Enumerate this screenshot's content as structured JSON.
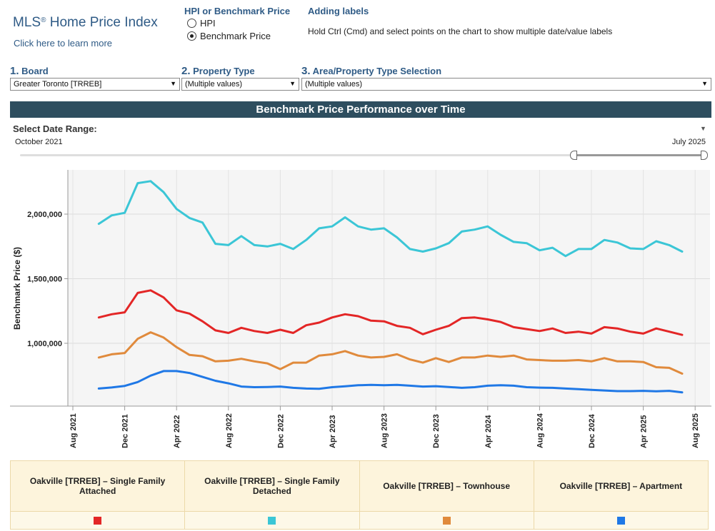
{
  "header": {
    "title": "MLS",
    "title_mark": "®",
    "title_rest": " Home Price Index",
    "learn_more": "Click here to learn more"
  },
  "hpi_toggle": {
    "title": "HPI or Benchmark Price",
    "options": [
      {
        "label": "HPI",
        "selected": false
      },
      {
        "label": "Benchmark Price",
        "selected": true
      }
    ]
  },
  "labels_help": {
    "title": "Adding labels",
    "text": "Hold Ctrl (Cmd) and select points on the chart to show multiple date/value labels"
  },
  "filters": [
    {
      "num": "1.",
      "label": "Board",
      "value": "Greater Toronto [TRREB]"
    },
    {
      "num": "2.",
      "label": "Property Type",
      "value": "(Multiple values)"
    },
    {
      "num": "3.",
      "label": "Area/Property Type Selection",
      "value": "(Multiple values)"
    }
  ],
  "banner": "Benchmark Price Performance over Time",
  "date_range": {
    "label": "Select Date Range:",
    "start": "October 2021",
    "end": "July 2025"
  },
  "colors": {
    "attached": "#e32626",
    "detached": "#3bc6d6",
    "townhouse": "#e08a3c",
    "apartment": "#1f78e6",
    "banner": "#2e4e5f",
    "plot_bg": "#f5f5f5"
  },
  "chart_data": {
    "type": "line",
    "ylabel": "Benchmark Price ($)",
    "xlabel": "",
    "y_ticks": [
      1000000,
      1500000,
      2000000
    ],
    "y_tick_labels": [
      "1,000,000",
      "1,500,000",
      "2,000,000"
    ],
    "x_ticks": [
      "2021-08",
      "2021-12",
      "2022-04",
      "2022-08",
      "2022-12",
      "2023-04",
      "2023-08",
      "2023-12",
      "2024-04",
      "2024-08",
      "2024-12",
      "2025-04",
      "2025-08"
    ],
    "x_tick_labels": [
      "Aug 2021",
      "Dec 2021",
      "Apr 2022",
      "Aug 2022",
      "Dec 2022",
      "Apr 2023",
      "Aug 2023",
      "Dec 2023",
      "Apr 2024",
      "Aug 2024",
      "Dec 2024",
      "Apr 2025",
      "Aug 2025"
    ],
    "x_start": "2021-10",
    "series": [
      {
        "name": "Oakville [TRREB] – Single Family Attached",
        "color": "#e32626",
        "values": [
          1200000,
          1225000,
          1240000,
          1390000,
          1410000,
          1355000,
          1255000,
          1230000,
          1170000,
          1100000,
          1080000,
          1120000,
          1095000,
          1080000,
          1105000,
          1080000,
          1140000,
          1160000,
          1200000,
          1225000,
          1210000,
          1175000,
          1170000,
          1135000,
          1120000,
          1070000,
          1105000,
          1135000,
          1195000,
          1200000,
          1185000,
          1165000,
          1125000,
          1110000,
          1095000,
          1115000,
          1080000,
          1090000,
          1075000,
          1125000,
          1115000,
          1090000,
          1075000,
          1115000,
          1090000,
          1065000
        ]
      },
      {
        "name": "Oakville [TRREB] – Single Family Detached",
        "color": "#3bc6d6",
        "values": [
          1925000,
          1990000,
          2010000,
          2240000,
          2255000,
          2170000,
          2040000,
          1970000,
          1935000,
          1770000,
          1760000,
          1830000,
          1760000,
          1750000,
          1770000,
          1730000,
          1800000,
          1890000,
          1905000,
          1975000,
          1905000,
          1880000,
          1890000,
          1820000,
          1730000,
          1710000,
          1735000,
          1775000,
          1865000,
          1880000,
          1905000,
          1840000,
          1785000,
          1775000,
          1720000,
          1740000,
          1675000,
          1730000,
          1730000,
          1800000,
          1780000,
          1735000,
          1730000,
          1790000,
          1760000,
          1710000
        ]
      },
      {
        "name": "Oakville [TRREB] – Townhouse",
        "color": "#e08a3c",
        "values": [
          890000,
          915000,
          925000,
          1035000,
          1085000,
          1045000,
          970000,
          910000,
          900000,
          860000,
          865000,
          880000,
          860000,
          845000,
          800000,
          850000,
          850000,
          905000,
          915000,
          940000,
          905000,
          890000,
          895000,
          915000,
          875000,
          850000,
          885000,
          855000,
          890000,
          890000,
          905000,
          895000,
          905000,
          875000,
          870000,
          865000,
          865000,
          870000,
          860000,
          885000,
          860000,
          860000,
          855000,
          815000,
          810000,
          765000
        ]
      },
      {
        "name": "Oakville [TRREB] – Apartment",
        "color": "#1f78e6",
        "values": [
          650000,
          658000,
          670000,
          700000,
          750000,
          785000,
          785000,
          770000,
          740000,
          710000,
          690000,
          665000,
          660000,
          662000,
          665000,
          655000,
          650000,
          648000,
          660000,
          667000,
          675000,
          678000,
          675000,
          678000,
          672000,
          665000,
          668000,
          662000,
          655000,
          660000,
          672000,
          675000,
          672000,
          660000,
          657000,
          655000,
          650000,
          645000,
          640000,
          635000,
          630000,
          630000,
          632000,
          628000,
          632000,
          620000
        ]
      }
    ]
  }
}
